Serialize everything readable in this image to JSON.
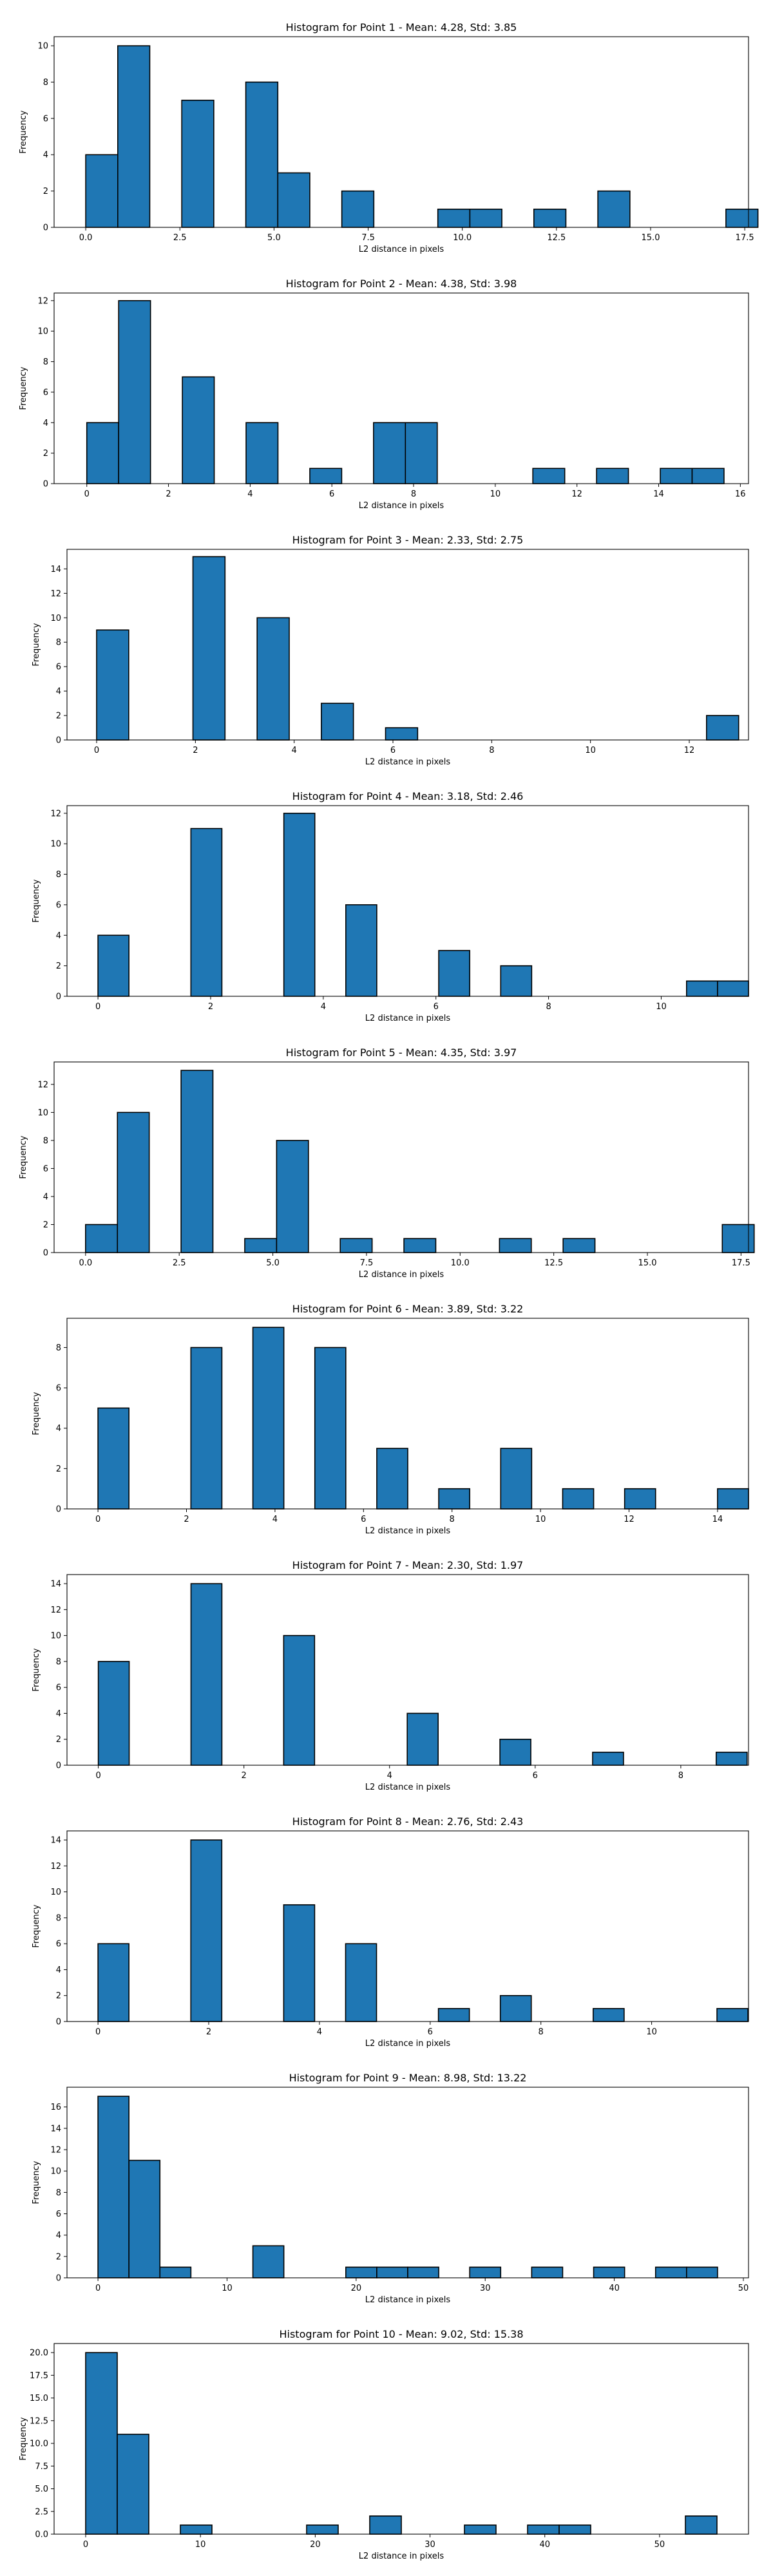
{
  "style": {
    "bar_fill": "#1f77b4",
    "bar_edge": "#000000",
    "background": "#ffffff"
  },
  "chart_data": [
    {
      "type": "bar",
      "title": "Histogram for Point 1 - Mean: 4.28, Std: 3.85",
      "xlabel": "L2 distance in pixels",
      "ylabel": "Frequency",
      "xlim": [
        -0.84,
        17.6
      ],
      "ylim": [
        0,
        10.5
      ],
      "xticks": [
        0.0,
        2.5,
        5.0,
        7.5,
        10.0,
        12.5,
        15.0,
        17.5
      ],
      "xtick_labels": [
        "0.0",
        "2.5",
        "5.0",
        "7.5",
        "10.0",
        "12.5",
        "15.0",
        "17.5"
      ],
      "yticks": [
        0,
        2,
        4,
        6,
        8,
        10
      ],
      "ytick_labels": [
        "0",
        "2",
        "4",
        "6",
        "8",
        "10"
      ],
      "bin_start": 0,
      "bin_width": 0.85,
      "counts": [
        4,
        10,
        0,
        7,
        0,
        8,
        3,
        0,
        2,
        0,
        0,
        1,
        1,
        0,
        1,
        0,
        2,
        0,
        0,
        0,
        1
      ]
    },
    {
      "type": "bar",
      "title": "Histogram for Point 2 - Mean: 4.38, Std: 3.98",
      "xlabel": "L2 distance in pixels",
      "ylabel": "Frequency",
      "xlim": [
        -0.8,
        16.2
      ],
      "ylim": [
        0,
        12.5
      ],
      "xticks": [
        0,
        2,
        4,
        6,
        8,
        10,
        12,
        14,
        16
      ],
      "xtick_labels": [
        "0",
        "2",
        "4",
        "6",
        "8",
        "10",
        "12",
        "14",
        "16"
      ],
      "yticks": [
        0,
        2,
        4,
        6,
        8,
        10,
        12
      ],
      "ytick_labels": [
        "0",
        "2",
        "4",
        "6",
        "8",
        "10",
        "12"
      ],
      "bin_start": 0,
      "bin_width": 0.78,
      "counts": [
        4,
        12,
        0,
        7,
        0,
        4,
        0,
        1,
        0,
        4,
        4,
        0,
        0,
        0,
        1,
        0,
        1,
        0,
        1,
        1
      ]
    },
    {
      "type": "bar",
      "title": "Histogram for Point 3 - Mean: 2.33, Std: 2.75",
      "xlabel": "L2 distance in pixels",
      "ylabel": "Frequency",
      "xlim": [
        -0.6,
        13.2
      ],
      "ylim": [
        0,
        15.6
      ],
      "xticks": [
        0,
        2,
        4,
        6,
        8,
        10,
        12
      ],
      "xtick_labels": [
        "0",
        "2",
        "4",
        "6",
        "8",
        "10",
        "12"
      ],
      "yticks": [
        0,
        2,
        4,
        6,
        8,
        10,
        12,
        14
      ],
      "ytick_labels": [
        "0",
        "2",
        "4",
        "6",
        "8",
        "10",
        "12",
        "14"
      ],
      "bin_start": 0,
      "bin_width": 0.65,
      "counts": [
        9,
        0,
        0,
        15,
        0,
        10,
        0,
        3,
        0,
        1,
        0,
        0,
        0,
        0,
        0,
        0,
        0,
        0,
        0,
        2
      ]
    },
    {
      "type": "bar",
      "title": "Histogram for Point 4 - Mean: 3.18, Std: 2.46",
      "xlabel": "L2 distance in pixels",
      "ylabel": "Frequency",
      "xlim": [
        -0.55,
        11.55
      ],
      "ylim": [
        0,
        12.5
      ],
      "xticks": [
        0,
        2,
        4,
        6,
        8,
        10
      ],
      "xtick_labels": [
        "0",
        "2",
        "4",
        "6",
        "8",
        "10"
      ],
      "yticks": [
        0,
        2,
        4,
        6,
        8,
        10,
        12
      ],
      "ytick_labels": [
        "0",
        "2",
        "4",
        "6",
        "8",
        "10",
        "12"
      ],
      "bin_start": 0,
      "bin_width": 0.55,
      "counts": [
        4,
        0,
        0,
        11,
        0,
        0,
        12,
        0,
        6,
        0,
        0,
        3,
        0,
        2,
        0,
        0,
        0,
        0,
        0,
        1,
        1
      ]
    },
    {
      "type": "bar",
      "title": "Histogram for Point 5 - Mean: 4.35, Std: 3.97",
      "xlabel": "L2 distance in pixels",
      "ylabel": "Frequency",
      "xlim": [
        -0.84,
        17.7
      ],
      "ylim": [
        0,
        13.6
      ],
      "xticks": [
        0.0,
        2.5,
        5.0,
        7.5,
        10.0,
        12.5,
        15.0,
        17.5
      ],
      "xtick_labels": [
        "0.0",
        "2.5",
        "5.0",
        "7.5",
        "10.0",
        "12.5",
        "15.0",
        "17.5"
      ],
      "yticks": [
        0,
        2,
        4,
        6,
        8,
        10,
        12
      ],
      "ytick_labels": [
        "0",
        "2",
        "4",
        "6",
        "8",
        "10",
        "12"
      ],
      "bin_start": 0,
      "bin_width": 0.85,
      "counts": [
        2,
        10,
        0,
        13,
        0,
        1,
        8,
        0,
        1,
        0,
        1,
        0,
        0,
        1,
        0,
        1,
        0,
        0,
        0,
        0,
        2
      ]
    },
    {
      "type": "bar",
      "title": "Histogram for Point 6 - Mean: 3.89, Std: 3.22",
      "xlabel": "L2 distance in pixels",
      "ylabel": "Frequency",
      "xlim": [
        -0.7,
        14.7
      ],
      "ylim": [
        0,
        9.45
      ],
      "xticks": [
        0,
        2,
        4,
        6,
        8,
        10,
        12,
        14
      ],
      "xtick_labels": [
        "0",
        "2",
        "4",
        "6",
        "8",
        "10",
        "12",
        "14"
      ],
      "yticks": [
        0,
        2,
        4,
        6,
        8
      ],
      "ytick_labels": [
        "0",
        "2",
        "4",
        "6",
        "8"
      ],
      "bin_start": 0,
      "bin_width": 0.7,
      "counts": [
        5,
        0,
        0,
        8,
        0,
        9,
        0,
        8,
        0,
        3,
        0,
        1,
        0,
        3,
        0,
        1,
        0,
        1,
        0,
        0,
        1
      ]
    },
    {
      "type": "bar",
      "title": "Histogram for Point 7 - Mean: 2.30, Std: 1.97",
      "xlabel": "L2 distance in pixels",
      "ylabel": "Frequency",
      "xlim": [
        -0.43,
        8.93
      ],
      "ylim": [
        0,
        14.7
      ],
      "xticks": [
        0,
        2,
        4,
        6,
        8
      ],
      "xtick_labels": [
        "0",
        "2",
        "4",
        "6",
        "8"
      ],
      "yticks": [
        0,
        2,
        4,
        6,
        8,
        10,
        12,
        14
      ],
      "ytick_labels": [
        "0",
        "2",
        "4",
        "6",
        "8",
        "10",
        "12",
        "14"
      ],
      "bin_start": 0,
      "bin_width": 0.4243,
      "counts": [
        8,
        0,
        0,
        14,
        0,
        0,
        10,
        0,
        0,
        0,
        4,
        0,
        0,
        2,
        0,
        0,
        1,
        0,
        0,
        0,
        1
      ]
    },
    {
      "type": "bar",
      "title": "Histogram for Point 8 - Mean: 2.76, Std: 2.43",
      "xlabel": "L2 distance in pixels",
      "ylabel": "Frequency",
      "xlim": [
        -0.56,
        11.75
      ],
      "ylim": [
        0,
        14.7
      ],
      "xticks": [
        0,
        2,
        4,
        6,
        8,
        10
      ],
      "xtick_labels": [
        "0",
        "2",
        "4",
        "6",
        "8",
        "10"
      ],
      "yticks": [
        0,
        2,
        4,
        6,
        8,
        10,
        12,
        14
      ],
      "ytick_labels": [
        "0",
        "2",
        "4",
        "6",
        "8",
        "10",
        "12",
        "14"
      ],
      "bin_start": 0,
      "bin_width": 0.559,
      "counts": [
        6,
        0,
        0,
        14,
        0,
        0,
        9,
        0,
        6,
        0,
        0,
        1,
        0,
        2,
        0,
        0,
        1,
        0,
        0,
        0,
        1
      ]
    },
    {
      "type": "bar",
      "title": "Histogram for Point 9 - Mean: 8.98, Std: 13.22",
      "xlabel": "L2 distance in pixels",
      "ylabel": "Frequency",
      "xlim": [
        -2.4,
        50.4
      ],
      "ylim": [
        0,
        17.85
      ],
      "xticks": [
        0,
        10,
        20,
        30,
        40,
        50
      ],
      "xtick_labels": [
        "0",
        "10",
        "20",
        "30",
        "40",
        "50"
      ],
      "yticks": [
        0,
        2,
        4,
        6,
        8,
        10,
        12,
        14,
        16
      ],
      "ytick_labels": [
        "0",
        "2",
        "4",
        "6",
        "8",
        "10",
        "12",
        "14",
        "16"
      ],
      "bin_start": 0,
      "bin_width": 2.4,
      "counts": [
        17,
        11,
        1,
        0,
        0,
        3,
        0,
        0,
        1,
        1,
        1,
        0,
        1,
        0,
        1,
        0,
        1,
        0,
        1,
        1
      ]
    },
    {
      "type": "bar",
      "title": "Histogram for Point 10 - Mean: 9.02, Std: 15.38",
      "xlabel": "L2 distance in pixels",
      "ylabel": "Frequency",
      "xlim": [
        -2.75,
        57.75
      ],
      "ylim": [
        0,
        21.0
      ],
      "xticks": [
        0,
        10,
        20,
        30,
        40,
        50
      ],
      "xtick_labels": [
        "0",
        "10",
        "20",
        "30",
        "40",
        "50"
      ],
      "yticks": [
        0,
        2.5,
        5.0,
        7.5,
        10.0,
        12.5,
        15.0,
        17.5,
        20.0
      ],
      "ytick_labels": [
        "0.0",
        "2.5",
        "5.0",
        "7.5",
        "10.0",
        "12.5",
        "15.0",
        "17.5",
        "20.0"
      ],
      "bin_start": 0,
      "bin_width": 2.75,
      "counts": [
        20,
        11,
        0,
        1,
        0,
        0,
        0,
        1,
        0,
        2,
        0,
        0,
        1,
        0,
        1,
        1,
        0,
        0,
        0,
        2
      ]
    }
  ]
}
